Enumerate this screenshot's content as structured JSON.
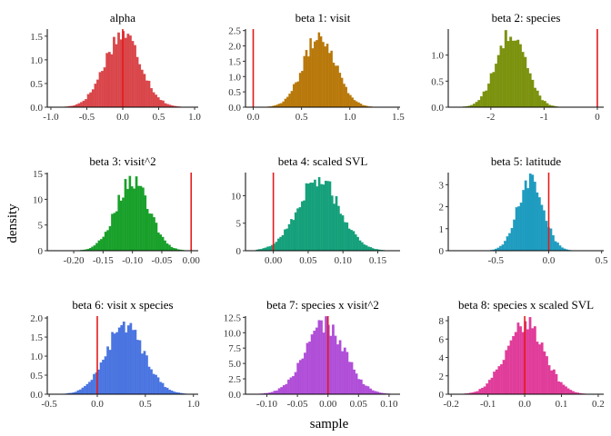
{
  "chart_data": {
    "type": "bar",
    "xlabel": "sample",
    "ylabel": "density",
    "grid": false,
    "legend": "none",
    "zero_line_color": "#e41a1c",
    "panels": [
      {
        "title": "alpha",
        "color": "#d9464a",
        "xlim": [
          -1.05,
          1.05
        ],
        "ylim": [
          0,
          1.65
        ],
        "xticks": [
          -1.0,
          -0.5,
          0.0,
          0.5,
          1.0
        ],
        "xtick_labels": [
          "-1.0",
          "-0.5",
          "0.0",
          "0.5",
          "1.0"
        ],
        "yticks": [
          0.0,
          0.5,
          1.0,
          1.5
        ],
        "ytick_labels": [
          "0.0",
          "0.5",
          "1.0",
          "1.5"
        ],
        "center": 0.0,
        "sd": 0.25,
        "peak": 1.6,
        "range": [
          -0.95,
          1.0
        ],
        "zero": 0.0
      },
      {
        "title": "beta 1: visit",
        "color": "#b8780a",
        "xlim": [
          -0.08,
          1.52
        ],
        "ylim": [
          0,
          2.55
        ],
        "xticks": [
          0.0,
          0.5,
          1.0,
          1.5
        ],
        "xtick_labels": [
          "0.0",
          "0.5",
          "1.0",
          "1.5"
        ],
        "yticks": [
          0.0,
          0.5,
          1.0,
          1.5,
          2.0,
          2.5
        ],
        "ytick_labels": [
          "0.0",
          "0.5",
          "1.0",
          "1.5",
          "2.0",
          "2.5"
        ],
        "center": 0.69,
        "sd": 0.17,
        "peak": 2.4,
        "range": [
          0.15,
          1.45
        ],
        "zero": 0.0
      },
      {
        "title": "beta 2: species",
        "color": "#7b920e",
        "xlim": [
          -2.8,
          0.12
        ],
        "ylim": [
          0,
          1.5
        ],
        "xticks": [
          -2.0,
          -1.0,
          0.0
        ],
        "xtick_labels": [
          "-2",
          "-1",
          "0"
        ],
        "yticks": [
          0.0,
          0.5,
          1.0
        ],
        "ytick_labels": [
          "0.0",
          "0.5",
          "1.0"
        ],
        "center": -1.62,
        "sd": 0.28,
        "peak": 1.45,
        "range": [
          -2.75,
          0.0
        ],
        "zero": 0.0
      },
      {
        "title": "beta 3: visit^2",
        "color": "#18a02a",
        "xlim": [
          -0.245,
          0.012
        ],
        "ylim": [
          0,
          15.2
        ],
        "xticks": [
          -0.2,
          -0.15,
          -0.1,
          -0.05,
          0.0
        ],
        "xtick_labels": [
          "-0.20",
          "-0.15",
          "-0.10",
          "-0.05",
          "0.00"
        ],
        "yticks": [
          0,
          5,
          10,
          15
        ],
        "ytick_labels": [
          "0",
          "5",
          "10",
          "15"
        ],
        "center": -0.1,
        "sd": 0.028,
        "peak": 14.2,
        "range": [
          -0.23,
          -0.005
        ],
        "zero": 0.0
      },
      {
        "title": "beta 4: scaled SVL",
        "color": "#14a07a",
        "xlim": [
          -0.04,
          0.182
        ],
        "ylim": [
          0,
          14.2
        ],
        "xticks": [
          0.0,
          0.05,
          0.1,
          0.15
        ],
        "xtick_labels": [
          "0.00",
          "0.05",
          "0.10",
          "0.15"
        ],
        "yticks": [
          0,
          5,
          10
        ],
        "ytick_labels": [
          "0",
          "5",
          "10"
        ],
        "center": 0.065,
        "sd": 0.03,
        "peak": 13.4,
        "range": [
          -0.025,
          0.16
        ],
        "zero": 0.0
      },
      {
        "title": "beta 5: latitude",
        "color": "#1e9cc0",
        "xlim": [
          -0.95,
          0.52
        ],
        "ylim": [
          0,
          3.55
        ],
        "xticks": [
          -0.5,
          0.0,
          0.5
        ],
        "xtick_labels": [
          "-0.5",
          "0.0",
          "0.5"
        ],
        "yticks": [
          0,
          1,
          2,
          3
        ],
        "ytick_labels": [
          "0",
          "1",
          "2",
          "3"
        ],
        "center": -0.17,
        "sd": 0.12,
        "peak": 3.35,
        "range": [
          -0.9,
          0.4
        ],
        "zero": 0.0
      },
      {
        "title": "beta 6: visit x species",
        "color": "#4a74e0",
        "xlim": [
          -0.52,
          1.05
        ],
        "ylim": [
          0,
          2.05
        ],
        "xticks": [
          -0.5,
          0.0,
          0.5,
          1.0
        ],
        "xtick_labels": [
          "-0.5",
          "0.0",
          "0.5",
          "1.0"
        ],
        "yticks": [
          0.0,
          0.5,
          1.0,
          1.5,
          2.0
        ],
        "ytick_labels": [
          "0.0",
          "0.5",
          "1.0",
          "1.5",
          "2.0"
        ],
        "center": 0.29,
        "sd": 0.2,
        "peak": 1.85,
        "range": [
          -0.45,
          0.98
        ],
        "zero": 0.0
      },
      {
        "title": "beta 7: species x visit^2",
        "color": "#b04ed8",
        "xlim": [
          -0.135,
          0.118
        ],
        "ylim": [
          0,
          12.7
        ],
        "xticks": [
          -0.1,
          -0.05,
          0.0,
          0.05,
          0.1
        ],
        "xtick_labels": [
          "-0.10",
          "-0.05",
          "0.00",
          "0.05",
          "0.10"
        ],
        "yticks": [
          0.0,
          2.5,
          5.0,
          7.5,
          10.0,
          12.5
        ],
        "ytick_labels": [
          "0.0",
          "2.5",
          "5.0",
          "7.5",
          "10.0",
          "12.5"
        ],
        "center": -0.005,
        "sd": 0.033,
        "peak": 11.6,
        "range": [
          -0.12,
          0.11
        ],
        "zero": 0.0
      },
      {
        "title": "beta 8: species x scaled SVL",
        "color": "#e03c9a",
        "xlim": [
          -0.208,
          0.215
        ],
        "ylim": [
          0,
          8.5
        ],
        "xticks": [
          -0.2,
          -0.1,
          0.0,
          0.1,
          0.2
        ],
        "xtick_labels": [
          "-0.2",
          "-0.1",
          "0.0",
          "0.1",
          "0.2"
        ],
        "yticks": [
          0,
          2,
          4,
          6,
          8
        ],
        "ytick_labels": [
          "0",
          "2",
          "4",
          "6",
          "8"
        ],
        "center": 0.0,
        "sd": 0.052,
        "peak": 8.0,
        "range": [
          -0.19,
          0.2
        ],
        "zero": 0.0
      }
    ]
  }
}
